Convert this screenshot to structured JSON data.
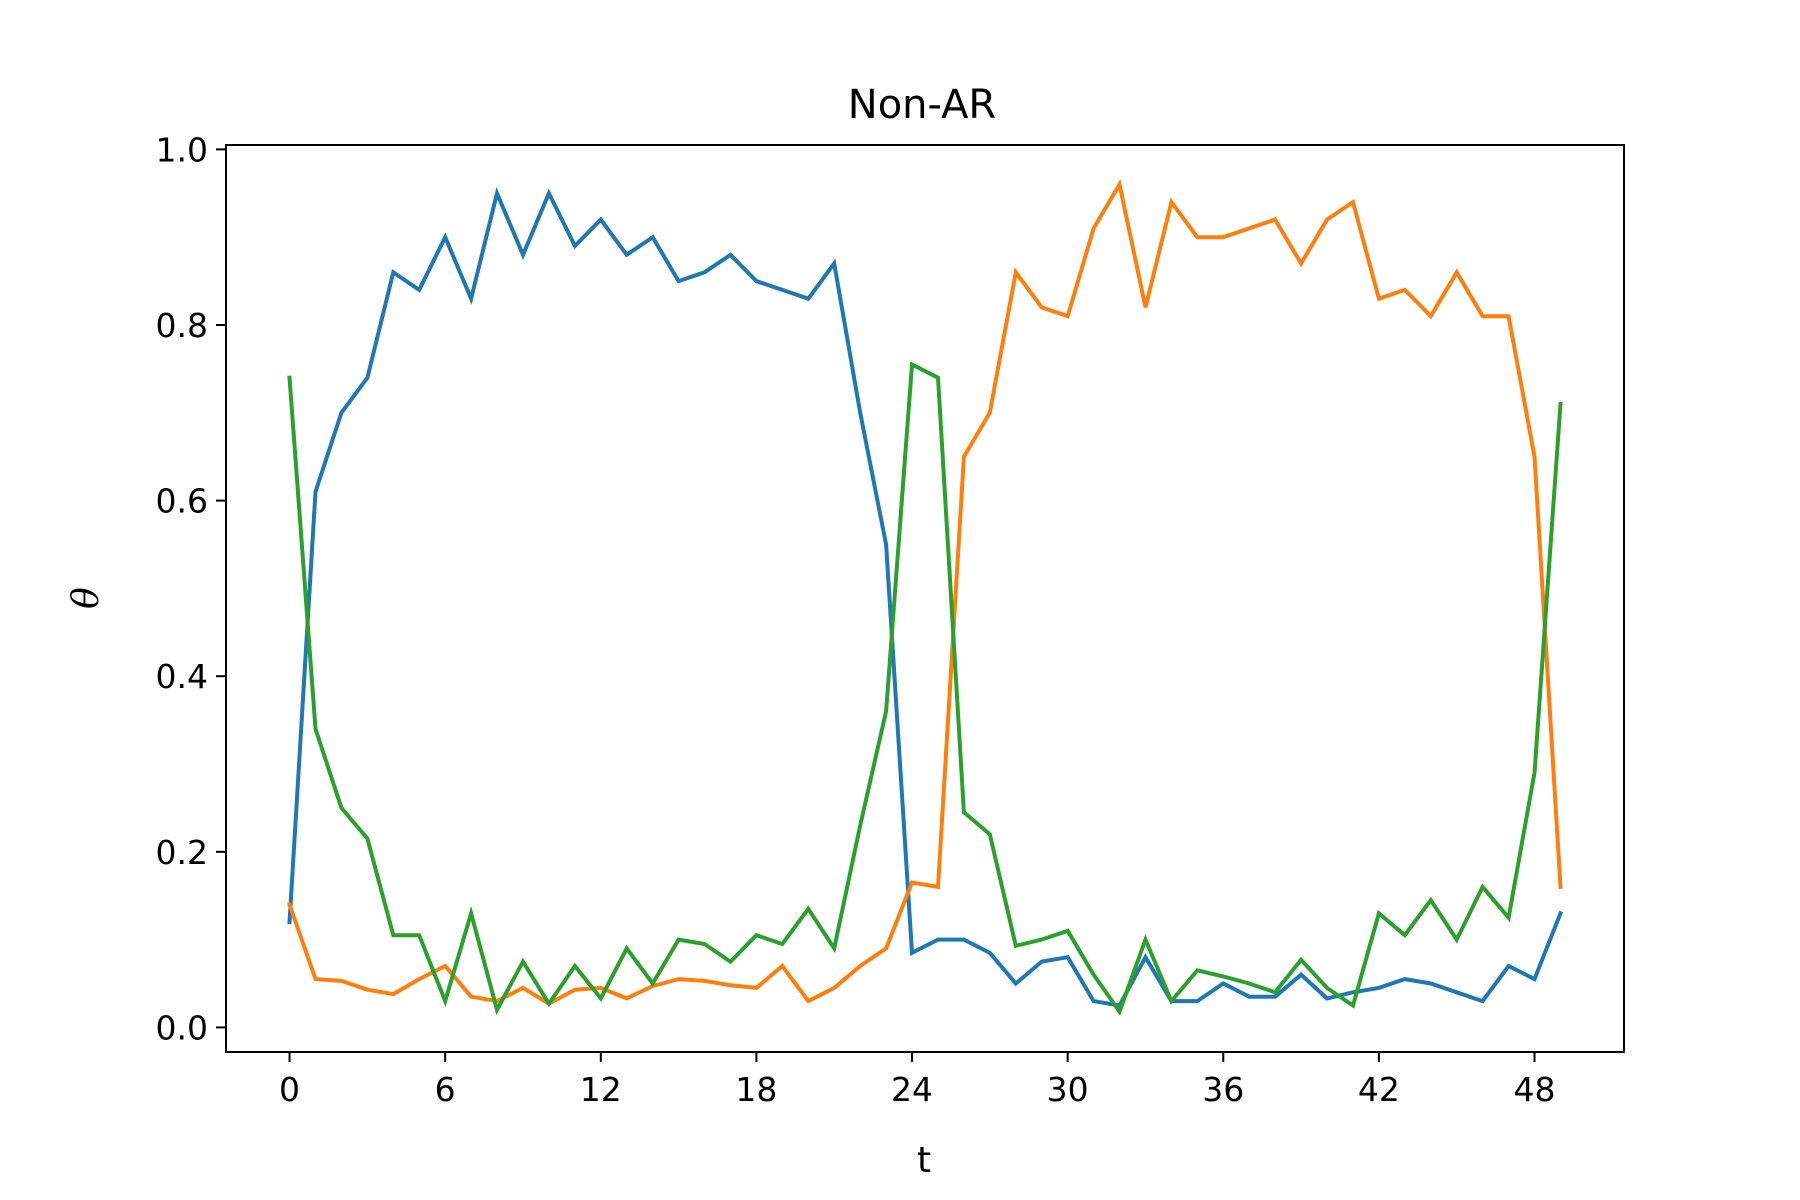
{
  "chart_data": {
    "type": "line",
    "title": "Non-AR",
    "xlabel": "t",
    "ylabel": "θ",
    "xlim": [
      -2.45,
      51.45
    ],
    "ylim": [
      -0.028,
      1.005
    ],
    "xticks": [
      0,
      6,
      12,
      18,
      24,
      30,
      36,
      42,
      48
    ],
    "yticks": [
      0.0,
      0.2,
      0.4,
      0.6,
      0.8,
      1.0
    ],
    "ytick_labels": [
      "0.0",
      "0.2",
      "0.4",
      "0.6",
      "0.8",
      "1.0"
    ],
    "grid": false,
    "legend": "none",
    "x": [
      0,
      1,
      2,
      3,
      4,
      5,
      6,
      7,
      8,
      9,
      10,
      11,
      12,
      13,
      14,
      15,
      16,
      17,
      18,
      19,
      20,
      21,
      22,
      23,
      24,
      25,
      26,
      27,
      28,
      29,
      30,
      31,
      32,
      33,
      34,
      35,
      36,
      37,
      38,
      39,
      40,
      41,
      42,
      43,
      44,
      45,
      46,
      47,
      48,
      49
    ],
    "series": [
      {
        "color": "#1f77b4",
        "values": [
          0.12,
          0.61,
          0.7,
          0.74,
          0.86,
          0.84,
          0.9,
          0.83,
          0.95,
          0.88,
          0.95,
          0.89,
          0.92,
          0.88,
          0.9,
          0.85,
          0.86,
          0.88,
          0.85,
          0.84,
          0.83,
          0.87,
          0.7,
          0.55,
          0.085,
          0.1,
          0.1,
          0.085,
          0.05,
          0.075,
          0.08,
          0.03,
          0.025,
          0.08,
          0.03,
          0.03,
          0.05,
          0.035,
          0.035,
          0.06,
          0.033,
          0.04,
          0.045,
          0.055,
          0.05,
          0.04,
          0.03,
          0.07,
          0.055,
          0.13
        ]
      },
      {
        "color": "#ff7f0e",
        "values": [
          0.14,
          0.055,
          0.053,
          0.043,
          0.038,
          0.055,
          0.07,
          0.035,
          0.03,
          0.045,
          0.027,
          0.043,
          0.045,
          0.033,
          0.047,
          0.055,
          0.053,
          0.048,
          0.045,
          0.07,
          0.03,
          0.045,
          0.07,
          0.09,
          0.165,
          0.16,
          0.65,
          0.7,
          0.86,
          0.82,
          0.81,
          0.91,
          0.96,
          0.82,
          0.94,
          0.9,
          0.9,
          0.91,
          0.92,
          0.87,
          0.92,
          0.94,
          0.83,
          0.84,
          0.81,
          0.86,
          0.81,
          0.81,
          0.65,
          0.16
        ]
      },
      {
        "color": "#2ca02c",
        "values": [
          0.74,
          0.34,
          0.25,
          0.215,
          0.105,
          0.105,
          0.03,
          0.13,
          0.02,
          0.075,
          0.027,
          0.07,
          0.033,
          0.09,
          0.05,
          0.1,
          0.095,
          0.075,
          0.105,
          0.095,
          0.135,
          0.09,
          0.23,
          0.36,
          0.755,
          0.74,
          0.245,
          0.22,
          0.093,
          0.1,
          0.11,
          0.06,
          0.018,
          0.1,
          0.03,
          0.065,
          0.058,
          0.05,
          0.04,
          0.077,
          0.045,
          0.025,
          0.13,
          0.105,
          0.145,
          0.1,
          0.16,
          0.125,
          0.29,
          0.71
        ]
      }
    ]
  }
}
